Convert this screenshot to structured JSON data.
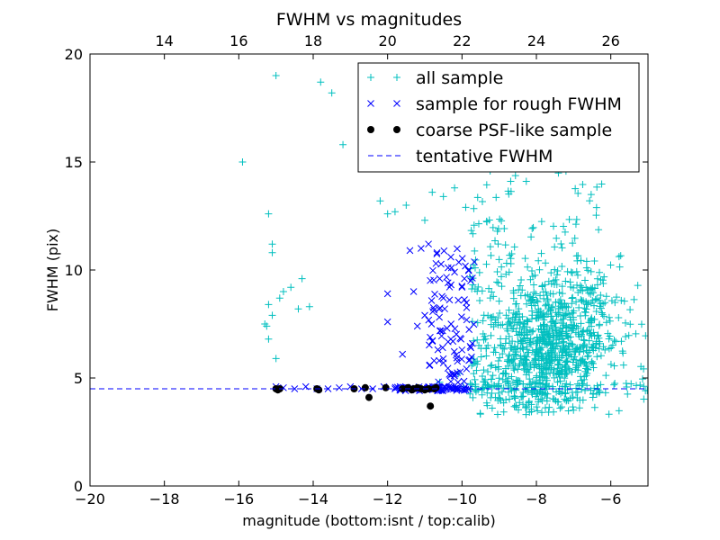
{
  "chart_data": {
    "type": "scatter",
    "title": "FWHM vs magnitudes",
    "xlabel": "magnitude (bottom:isnt / top:calib)",
    "ylabel": "FWHM (pix)",
    "xlim": [
      -20,
      -5
    ],
    "ylim": [
      0,
      20
    ],
    "xticks": [
      -20,
      -18,
      -16,
      -14,
      -12,
      -10,
      -8,
      -6
    ],
    "yticks": [
      0,
      5,
      10,
      15,
      20
    ],
    "top_axis": {
      "offset": 32,
      "ticks": [
        14,
        16,
        18,
        20,
        22,
        24,
        26
      ]
    },
    "grid": false,
    "legend_position": "top-right",
    "colors": {
      "all": "#00bfbf",
      "rough": "#0000ff",
      "coarse": "#000000",
      "tentative": "#0000ff"
    },
    "legend": [
      {
        "label": "all sample",
        "marker": "plus",
        "color": "#00bfbf"
      },
      {
        "label": "sample for rough FWHM",
        "marker": "x",
        "color": "#0000ff"
      },
      {
        "label": "coarse PSF-like sample",
        "marker": "dot",
        "color": "#000000"
      },
      {
        "label": "tentative FWHM",
        "marker": "dashed-line",
        "color": "#0000ff"
      }
    ],
    "tentative_fwhm": 4.5,
    "series": [
      {
        "name": "all sample",
        "marker": "plus",
        "x": [
          -15.9,
          -15.2,
          -15.1,
          -15.1,
          -15.0,
          -14.9,
          -14.6,
          -14.4,
          -14.3,
          -14.1,
          -13.8,
          -13.5,
          -13.2,
          -12.5,
          -12.2,
          -12.0,
          -11.8,
          -11.5,
          -11.0,
          -10.8,
          -10.5,
          -10.2,
          -15.3,
          -15.2,
          -15.1,
          -15.2,
          -15.25,
          -15.0,
          -14.8,
          -10.1,
          -10.6,
          -9.9
        ],
        "y": [
          15.0,
          12.6,
          11.2,
          10.8,
          19.0,
          8.7,
          9.2,
          8.2,
          9.6,
          8.3,
          18.7,
          18.2,
          15.8,
          18.5,
          13.2,
          12.6,
          12.7,
          13.0,
          12.3,
          13.6,
          13.4,
          13.8,
          7.5,
          8.4,
          7.9,
          6.8,
          7.4,
          5.9,
          9.0,
          5.2,
          4.8,
          12.9
        ],
        "cluster": {
          "x_range": [
            -10.2,
            -5.0
          ],
          "y_range": [
            3.2,
            20.0
          ],
          "center": [
            -7.7,
            6.5
          ]
        }
      },
      {
        "name": "sample for rough FWHM",
        "marker": "x",
        "x": [
          -15.0,
          -14.8,
          -14.5,
          -14.2,
          -13.9,
          -13.6,
          -13.3,
          -13.0,
          -12.7,
          -12.4,
          -12.1,
          -11.8,
          -11.5,
          -11.2,
          -10.9,
          -10.6,
          -10.3,
          -10.1,
          -12.0,
          -12.0,
          -11.4,
          -11.3,
          -11.0,
          -10.9,
          -10.7,
          -10.6,
          -10.5,
          -10.4,
          -10.3,
          -10.2,
          -10.1,
          -10.0,
          -11.6,
          -11.2,
          -11.1,
          -10.5,
          -10.3,
          -10.0,
          -10.8,
          -10.2
        ],
        "y": [
          4.6,
          4.55,
          4.5,
          4.6,
          4.5,
          4.5,
          4.55,
          4.6,
          4.5,
          4.5,
          4.6,
          4.5,
          4.55,
          4.5,
          4.6,
          4.5,
          4.55,
          4.5,
          8.9,
          7.6,
          10.9,
          9.0,
          7.9,
          11.2,
          10.3,
          9.6,
          8.7,
          7.3,
          6.8,
          9.9,
          8.6,
          6.3,
          6.1,
          7.4,
          11.0,
          5.7,
          10.6,
          9.2,
          6.7,
          5.1
        ],
        "cluster": {
          "x_range": [
            -10.9,
            -9.6
          ],
          "y_range": [
            4.4,
            11.3
          ]
        }
      },
      {
        "name": "coarse PSF-like sample",
        "marker": "dot",
        "x": [
          -15.0,
          -14.9,
          -14.95,
          -13.9,
          -13.85,
          -12.9,
          -12.6,
          -12.5,
          -12.05,
          -11.6,
          -11.45,
          -11.35,
          -11.3,
          -11.2,
          -11.1,
          -11.0,
          -10.9,
          -10.85,
          -10.75,
          -10.7
        ],
        "y": [
          4.5,
          4.5,
          4.45,
          4.5,
          4.45,
          4.5,
          4.55,
          4.1,
          4.55,
          4.5,
          4.55,
          4.45,
          4.5,
          4.55,
          4.5,
          4.45,
          4.5,
          3.7,
          4.5,
          4.55
        ]
      }
    ]
  }
}
